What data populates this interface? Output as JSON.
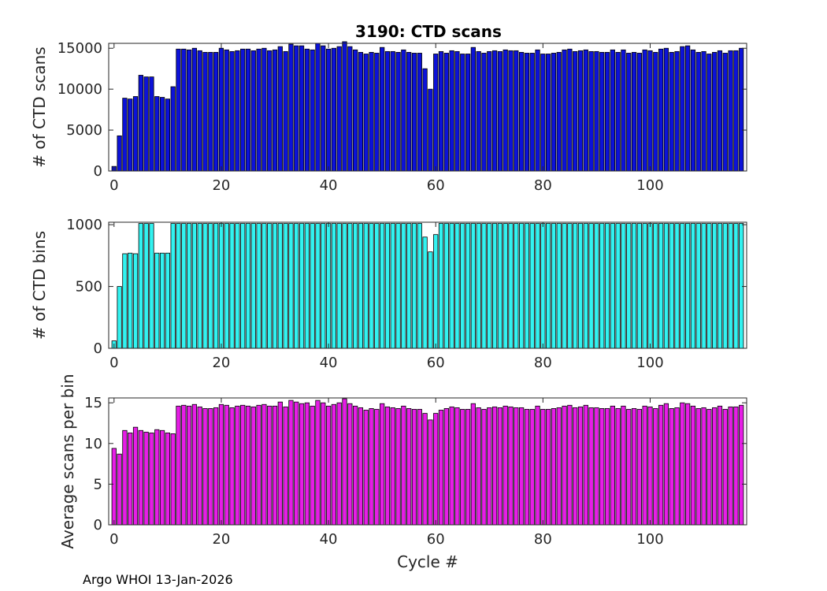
{
  "figure": {
    "title": "3190: CTD scans",
    "footer": "Argo WHOI 13-Jan-2026"
  },
  "chart_data": [
    {
      "type": "bar",
      "title": "3190: CTD scans",
      "xlabel": "",
      "ylabel": "# of CTD scans",
      "xlim": [
        -1,
        118
      ],
      "ylim": [
        0,
        15600
      ],
      "xticks": [
        0,
        20,
        40,
        60,
        80,
        100
      ],
      "yticks": [
        0,
        5000,
        10000,
        15000
      ],
      "color": "#0c12d9",
      "x": [
        0,
        1,
        2,
        3,
        4,
        5,
        6,
        7,
        8,
        9,
        10,
        11,
        12,
        13,
        14,
        15,
        16,
        17,
        18,
        19,
        20,
        21,
        22,
        23,
        24,
        25,
        26,
        27,
        28,
        29,
        30,
        31,
        32,
        33,
        34,
        35,
        36,
        37,
        38,
        39,
        40,
        41,
        42,
        43,
        44,
        45,
        46,
        47,
        48,
        49,
        50,
        51,
        52,
        53,
        54,
        55,
        56,
        57,
        58,
        59,
        60,
        61,
        62,
        63,
        64,
        65,
        66,
        67,
        68,
        69,
        70,
        71,
        72,
        73,
        74,
        75,
        76,
        77,
        78,
        79,
        80,
        81,
        82,
        83,
        84,
        85,
        86,
        87,
        88,
        89,
        90,
        91,
        92,
        93,
        94,
        95,
        96,
        97,
        98,
        99,
        100,
        101,
        102,
        103,
        104,
        105,
        106,
        107,
        108,
        109,
        110,
        111,
        112,
        113,
        114,
        115,
        116,
        117
      ],
      "values": [
        560,
        4300,
        8900,
        8800,
        9100,
        11700,
        11500,
        11500,
        9100,
        9000,
        8800,
        10300,
        14900,
        14900,
        14800,
        15000,
        14700,
        14500,
        14500,
        14500,
        15000,
        14800,
        14600,
        14700,
        14900,
        14900,
        14700,
        14900,
        15000,
        14700,
        14800,
        15200,
        14600,
        15500,
        15300,
        15300,
        14900,
        14800,
        15600,
        15300,
        14900,
        15000,
        15200,
        15800,
        15200,
        14800,
        14500,
        14300,
        14500,
        14400,
        15100,
        14600,
        14600,
        14500,
        14800,
        14500,
        14400,
        14400,
        12500,
        10000,
        14300,
        14600,
        14400,
        14700,
        14600,
        14300,
        14300,
        15100,
        14600,
        14400,
        14600,
        14700,
        14600,
        14800,
        14700,
        14700,
        14500,
        14400,
        14400,
        14800,
        14300,
        14300,
        14400,
        14500,
        14800,
        14900,
        14600,
        14700,
        14800,
        14600,
        14600,
        14500,
        14500,
        14800,
        14500,
        14800,
        14400,
        14500,
        14400,
        14800,
        14700,
        14500,
        14900,
        15000,
        14500,
        14600,
        15200,
        15300,
        14800,
        14500,
        14600,
        14300,
        14500,
        14700,
        14400,
        14700,
        14700,
        15000
      ]
    },
    {
      "type": "bar",
      "title": "",
      "xlabel": "",
      "ylabel": "# of CTD bins",
      "xlim": [
        -1,
        118
      ],
      "ylim": [
        0,
        1020
      ],
      "xticks": [
        0,
        20,
        40,
        60,
        80,
        100
      ],
      "yticks": [
        0,
        500,
        1000
      ],
      "color": "#32f2f0",
      "x": [
        0,
        1,
        2,
        3,
        4,
        5,
        6,
        7,
        8,
        9,
        10,
        11,
        12,
        13,
        14,
        15,
        16,
        17,
        18,
        19,
        20,
        21,
        22,
        23,
        24,
        25,
        26,
        27,
        28,
        29,
        30,
        31,
        32,
        33,
        34,
        35,
        36,
        37,
        38,
        39,
        40,
        41,
        42,
        43,
        44,
        45,
        46,
        47,
        48,
        49,
        50,
        51,
        52,
        53,
        54,
        55,
        56,
        57,
        58,
        59,
        60,
        61,
        62,
        63,
        64,
        65,
        66,
        67,
        68,
        69,
        70,
        71,
        72,
        73,
        74,
        75,
        76,
        77,
        78,
        79,
        80,
        81,
        82,
        83,
        84,
        85,
        86,
        87,
        88,
        89,
        90,
        91,
        92,
        93,
        94,
        95,
        96,
        97,
        98,
        99,
        100,
        101,
        102,
        103,
        104,
        105,
        106,
        107,
        108,
        109,
        110,
        111,
        112,
        113,
        114,
        115,
        116,
        117
      ],
      "values": [
        60,
        500,
        765,
        770,
        765,
        1010,
        1010,
        1010,
        770,
        770,
        770,
        1010,
        1010,
        1010,
        1010,
        1010,
        1010,
        1010,
        1010,
        1010,
        1010,
        1010,
        1010,
        1010,
        1010,
        1010,
        1010,
        1010,
        1010,
        1010,
        1010,
        1010,
        1010,
        1010,
        1010,
        1010,
        1010,
        1010,
        1010,
        1010,
        1010,
        1010,
        1010,
        1010,
        1010,
        1010,
        1010,
        1010,
        1010,
        1010,
        1010,
        1010,
        1010,
        1010,
        1010,
        1010,
        1010,
        1010,
        900,
        780,
        920,
        1010,
        1010,
        1010,
        1010,
        1010,
        1010,
        1010,
        1010,
        1010,
        1010,
        1010,
        1010,
        1010,
        1010,
        1010,
        1010,
        1010,
        1010,
        1010,
        1010,
        1010,
        1010,
        1010,
        1010,
        1010,
        1010,
        1010,
        1010,
        1010,
        1010,
        1010,
        1010,
        1010,
        1010,
        1010,
        1010,
        1010,
        1010,
        1010,
        1010,
        1010,
        1010,
        1010,
        1010,
        1010,
        1010,
        1010,
        1010,
        1010,
        1010,
        1010,
        1010,
        1010,
        1010,
        1010,
        1010,
        1010
      ]
    },
    {
      "type": "bar",
      "title": "",
      "xlabel": "Cycle #",
      "ylabel": "Average scans per bin",
      "xlim": [
        -1,
        118
      ],
      "ylim": [
        0,
        15.6
      ],
      "xticks": [
        0,
        20,
        40,
        60,
        80,
        100
      ],
      "yticks": [
        0,
        5,
        10,
        15
      ],
      "color": "#e61ee6",
      "x": [
        0,
        1,
        2,
        3,
        4,
        5,
        6,
        7,
        8,
        9,
        10,
        11,
        12,
        13,
        14,
        15,
        16,
        17,
        18,
        19,
        20,
        21,
        22,
        23,
        24,
        25,
        26,
        27,
        28,
        29,
        30,
        31,
        32,
        33,
        34,
        35,
        36,
        37,
        38,
        39,
        40,
        41,
        42,
        43,
        44,
        45,
        46,
        47,
        48,
        49,
        50,
        51,
        52,
        53,
        54,
        55,
        56,
        57,
        58,
        59,
        60,
        61,
        62,
        63,
        64,
        65,
        66,
        67,
        68,
        69,
        70,
        71,
        72,
        73,
        74,
        75,
        76,
        77,
        78,
        79,
        80,
        81,
        82,
        83,
        84,
        85,
        86,
        87,
        88,
        89,
        90,
        91,
        92,
        93,
        94,
        95,
        96,
        97,
        98,
        99,
        100,
        101,
        102,
        103,
        104,
        105,
        106,
        107,
        108,
        109,
        110,
        111,
        112,
        113,
        114,
        115,
        116,
        117
      ],
      "values": [
        9.4,
        8.7,
        11.6,
        11.3,
        12.0,
        11.6,
        11.4,
        11.3,
        11.7,
        11.6,
        11.3,
        11.2,
        14.6,
        14.7,
        14.6,
        14.8,
        14.5,
        14.3,
        14.3,
        14.4,
        14.8,
        14.7,
        14.4,
        14.6,
        14.7,
        14.6,
        14.5,
        14.7,
        14.8,
        14.6,
        14.6,
        15.1,
        14.5,
        15.3,
        15.1,
        14.9,
        15.0,
        14.6,
        15.3,
        15.0,
        14.6,
        14.8,
        15.0,
        15.5,
        14.9,
        14.6,
        14.4,
        14.1,
        14.3,
        14.2,
        14.9,
        14.5,
        14.4,
        14.3,
        14.6,
        14.3,
        14.2,
        14.2,
        13.7,
        12.9,
        13.7,
        14.1,
        14.3,
        14.5,
        14.4,
        14.2,
        14.2,
        14.9,
        14.4,
        14.2,
        14.4,
        14.5,
        14.4,
        14.6,
        14.5,
        14.4,
        14.4,
        14.2,
        14.2,
        14.6,
        14.2,
        14.2,
        14.3,
        14.4,
        14.6,
        14.7,
        14.4,
        14.5,
        14.7,
        14.4,
        14.4,
        14.3,
        14.3,
        14.6,
        14.3,
        14.6,
        14.2,
        14.3,
        14.2,
        14.6,
        14.5,
        14.3,
        14.7,
        14.9,
        14.3,
        14.4,
        15.0,
        14.9,
        14.6,
        14.3,
        14.4,
        14.2,
        14.4,
        14.6,
        14.2,
        14.5,
        14.5,
        14.7
      ]
    }
  ]
}
